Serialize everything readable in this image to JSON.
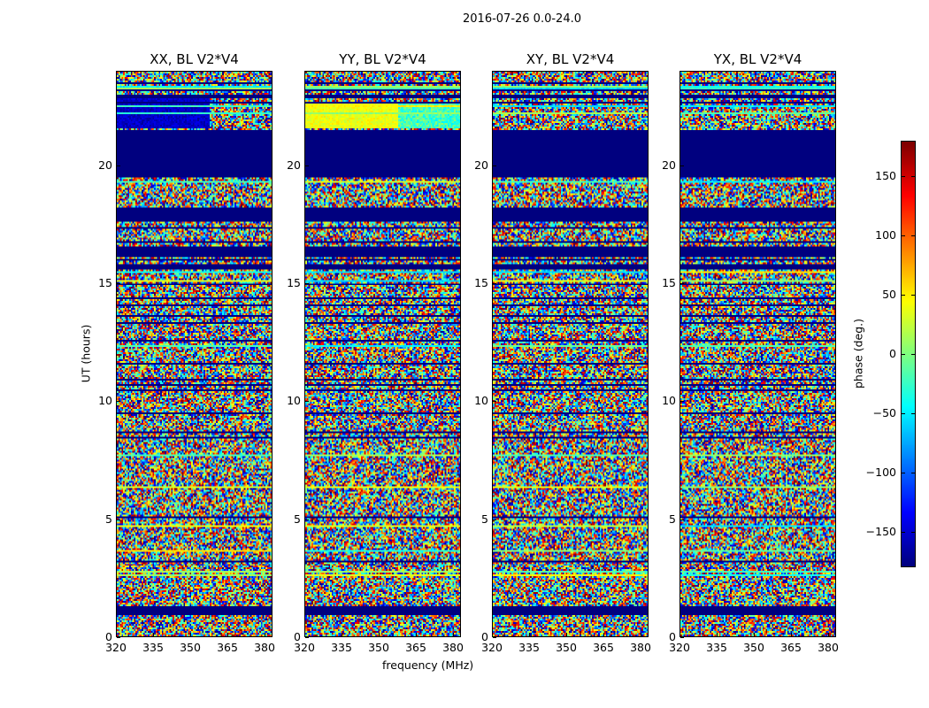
{
  "chart_data": {
    "type": "heatmap",
    "suptitle": "2016-07-26 0.0-24.0",
    "xlabel": "frequency (MHz)",
    "ylabel": "UT (hours)",
    "xlim": [
      320,
      383.2
    ],
    "ylim": [
      0,
      24
    ],
    "xticks": [
      "320",
      "335",
      "350",
      "365",
      "380"
    ],
    "xtick_values": [
      320,
      335,
      350,
      365,
      380
    ],
    "yticks": [
      "0",
      "5",
      "10",
      "15",
      "20"
    ],
    "ytick_values": [
      0,
      5,
      10,
      15,
      20
    ],
    "panels": [
      {
        "title": "XX, BL V2*V4",
        "pol": "XX"
      },
      {
        "title": "YY, BL V2*V4",
        "pol": "YY"
      },
      {
        "title": "XY, BL V2*V4",
        "pol": "XY"
      },
      {
        "title": "YX, BL V2*V4",
        "pol": "YX"
      }
    ],
    "flagged_hours": [
      [
        19.5,
        21.5
      ],
      [
        16.1,
        16.6
      ],
      [
        17.6,
        18.2
      ],
      [
        0.9,
        1.3
      ],
      [
        15.6,
        15.8
      ],
      [
        22.9,
        23.0
      ]
    ],
    "colorbar": {
      "label": "phase (deg.)",
      "range": [
        -180,
        180
      ],
      "ticks": [
        "150",
        "100",
        "50",
        "0",
        "−50",
        "−100",
        "−150"
      ],
      "tick_values": [
        150,
        100,
        50,
        0,
        -50,
        -100,
        -150
      ],
      "colormap": "jet"
    }
  }
}
